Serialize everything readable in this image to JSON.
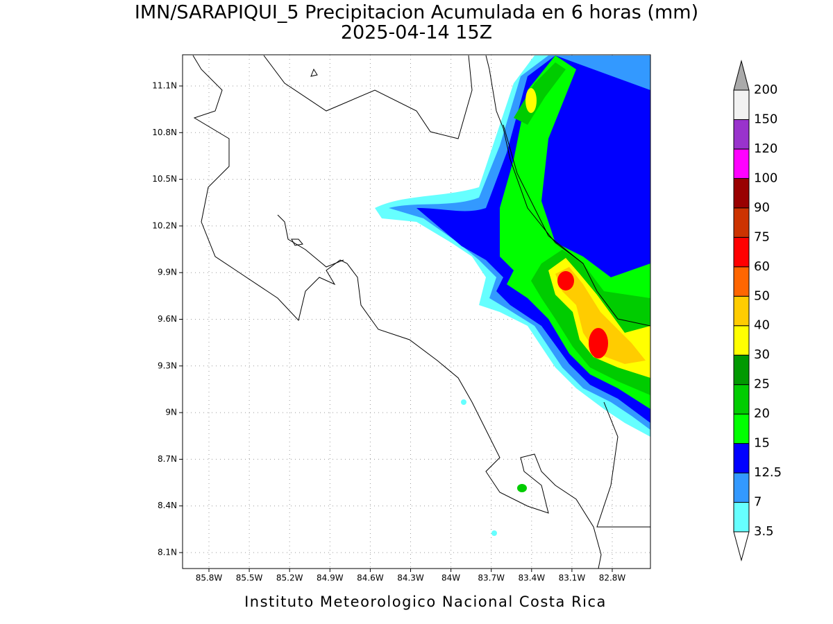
{
  "map": {
    "title": "IMN/SARAPIQUI_5 Precipitacion Acumulada en 6 horas (mm)",
    "subtitle": "2025-04-14 15Z",
    "lon_ticks": [
      "85.8W",
      "85.5W",
      "85.2W",
      "84.9W",
      "84.6W",
      "84.3W",
      "84W",
      "83.7W",
      "83.4W",
      "83.1W",
      "82.8W"
    ],
    "lat_ticks": [
      "11.1N",
      "10.8N",
      "10.5N",
      "10.2N",
      "9.9N",
      "9.6N",
      "9.3N",
      "9N",
      "8.7N",
      "8.4N",
      "8.1N"
    ],
    "grid": true,
    "colorbar": {
      "levels": [
        3.5,
        7,
        12.5,
        15,
        20,
        25,
        30,
        40,
        50,
        60,
        75,
        90,
        100,
        120,
        150,
        200
      ],
      "colors": [
        "#66ffff",
        "#3399ff",
        "#0000ff",
        "#00ff00",
        "#00cc00",
        "#009900",
        "#ffff00",
        "#ffcc00",
        "#ff6600",
        "#ff0000",
        "#cc3300",
        "#990000",
        "#ff00ff",
        "#9933cc",
        "#f2f2f2"
      ],
      "under_color": "#ffffff",
      "over_color": "#aaaaaa"
    },
    "footer": "Instituto Meteorologico Nacional Costa Rica"
  }
}
